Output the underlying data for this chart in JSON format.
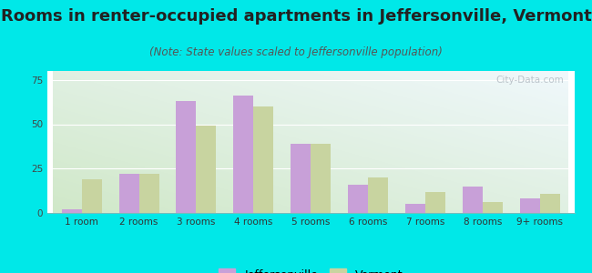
{
  "title": "Rooms in renter-occupied apartments in Jeffersonville, Vermont",
  "subtitle": "(Note: State values scaled to Jeffersonville population)",
  "categories": [
    "1 room",
    "2 rooms",
    "3 rooms",
    "4 rooms",
    "5 rooms",
    "6 rooms",
    "7 rooms",
    "8 rooms",
    "9+ rooms"
  ],
  "jeffersonville": [
    2,
    22,
    63,
    66,
    39,
    16,
    5,
    15,
    8
  ],
  "vermont": [
    19,
    22,
    49,
    60,
    39,
    20,
    12,
    6,
    11
  ],
  "jeffersonville_color": "#c8a0d8",
  "vermont_color": "#c8d4a0",
  "background_outer": "#00e8e8",
  "background_tl": "#d0ece8",
  "background_tr": "#e8f0f8",
  "background_bl": "#d0e8c8",
  "background_br": "#e8eed8",
  "ylim": [
    0,
    80
  ],
  "yticks": [
    0,
    25,
    50,
    75
  ],
  "bar_width": 0.35,
  "title_fontsize": 13,
  "subtitle_fontsize": 8.5,
  "legend_fontsize": 9,
  "tick_fontsize": 7.5,
  "watermark_text": "City-Data.com"
}
